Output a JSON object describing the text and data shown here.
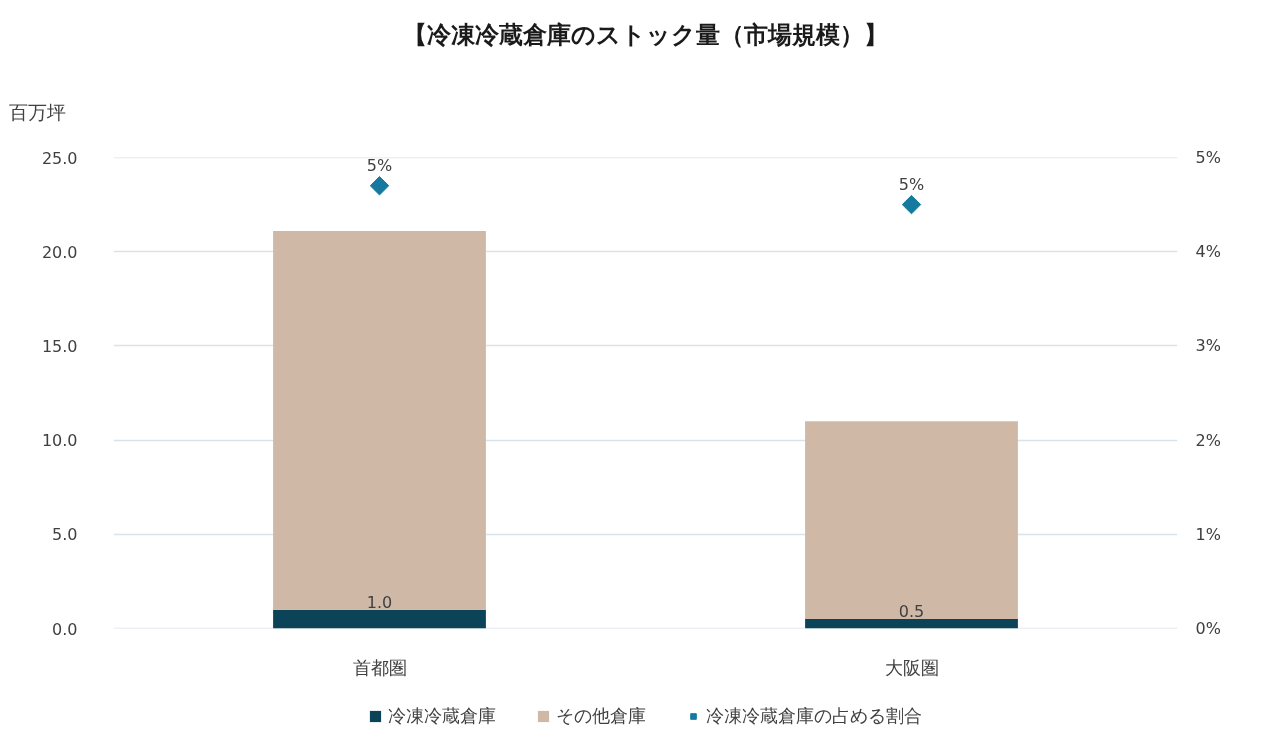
{
  "chart_data": {
    "type": "bar",
    "title": "【冷凍冷蔵倉庫のストック量（市場規模）】",
    "ylabel": "百万坪",
    "categories": [
      "首都圏",
      "大阪圏"
    ],
    "stacked": true,
    "series": [
      {
        "name": "冷凍冷蔵倉庫",
        "color": "#0b4459",
        "values": [
          1.0,
          0.5
        ],
        "value_labels": [
          "1.0",
          "0.5"
        ]
      },
      {
        "name": "その他倉庫",
        "color": "#d0b8a6",
        "values": [
          20.1,
          10.5
        ]
      },
      {
        "name": "冷凍冷蔵倉庫の占める割合",
        "type": "scatter",
        "axis": "y2",
        "marker": "diamond",
        "color": "#1579a0",
        "values": [
          4.7,
          4.5
        ],
        "value_labels": [
          "5%",
          "5%"
        ]
      }
    ],
    "ylim": [
      0,
      25
    ],
    "yticks": [
      {
        "value": 0,
        "label": "0.0"
      },
      {
        "value": 5,
        "label": "5.0"
      },
      {
        "value": 10,
        "label": "10.0"
      },
      {
        "value": 15,
        "label": "15.0"
      },
      {
        "value": 20,
        "label": "20.0"
      },
      {
        "value": 25,
        "label": "25.0"
      }
    ],
    "y2lim": [
      0,
      5
    ],
    "y2ticks": [
      {
        "value": 0,
        "label": "0%"
      },
      {
        "value": 1,
        "label": "1%"
      },
      {
        "value": 2,
        "label": "2%"
      },
      {
        "value": 3,
        "label": "3%"
      },
      {
        "value": 4,
        "label": "4%"
      },
      {
        "value": 5,
        "label": "5%"
      }
    ],
    "grid": "y",
    "legend": "bottom"
  }
}
